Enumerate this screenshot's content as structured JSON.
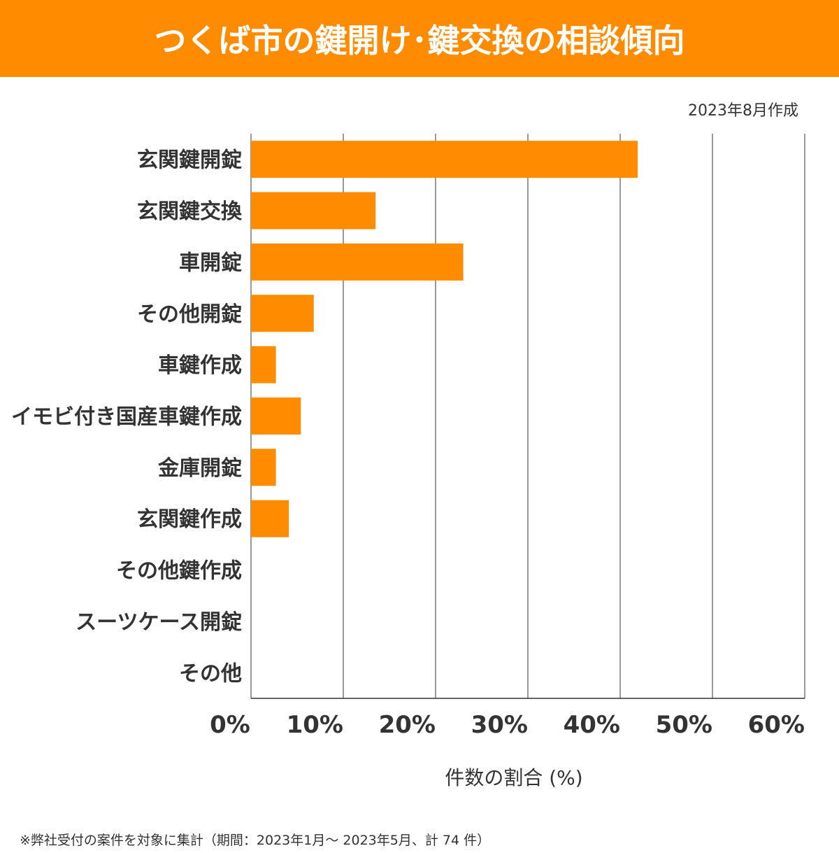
{
  "title": "つくば市の鍵開け･鍵交換の相談傾向",
  "date_note": "2023年8月作成",
  "footnote": "※弊社受付の案件を対象に集計（期間：2023年1月～ 2023年5月、計 74 件）",
  "colors": {
    "accent": "#ff8c00",
    "bar": "#ff8c00",
    "grid": "#333333"
  },
  "chart_data": {
    "type": "bar",
    "orientation": "horizontal",
    "title": "つくば市の鍵開け･鍵交換の相談傾向",
    "xlabel": "件数の割合 (%)",
    "ylabel": "",
    "categories": [
      "玄関鍵開錠",
      "玄関鍵交換",
      "車開錠",
      "その他開錠",
      "車鍵作成",
      "イモビ付き国産車鍵作成",
      "金庫開錠",
      "玄関鍵作成",
      "その他鍵作成",
      "スーツケース開錠",
      "その他"
    ],
    "values": [
      41.9,
      13.5,
      23.0,
      6.8,
      2.7,
      5.4,
      2.7,
      4.1,
      0,
      0,
      0
    ],
    "xlim": [
      0,
      60
    ],
    "xticks": [
      "0%",
      "10%",
      "20%",
      "30%",
      "40%",
      "50%",
      "60%"
    ],
    "grid": "vertical",
    "legend": "none"
  }
}
